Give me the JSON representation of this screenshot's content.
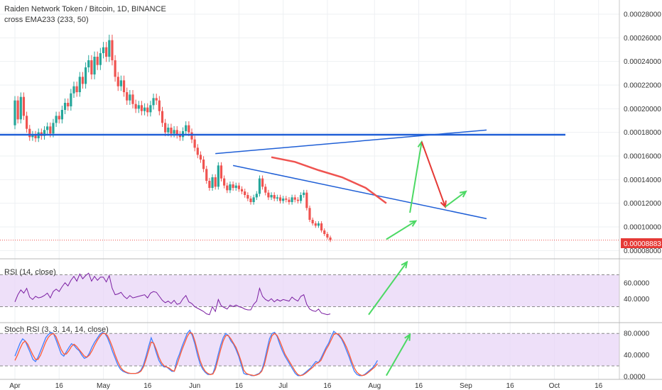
{
  "header": {
    "title": "Raiden Network Token / Bitcoin, 1D, BINANCE",
    "indicator": "cross EMA233 (233, 50)"
  },
  "panels": {
    "rsi_label": "RSI (14, close)",
    "stoch_label": "Stoch RSI (3, 3, 14, 14, close)"
  },
  "colors": {
    "up": "#26a69a",
    "down": "#ef5350",
    "resistance": "#1f5fd6",
    "arrow_up": "#4cd964",
    "arrow_down": "#e53935",
    "rsi_line": "#7b1fa2",
    "stoch_k": "#3f7fff",
    "stoch_d": "#ff5a36",
    "band": "#e8d5f7"
  },
  "chart_data": [
    {
      "type": "candlestick",
      "y_ticks": [
        "0.00028000",
        "0.00026000",
        "0.00024000",
        "0.00022000",
        "0.00020000",
        "0.00018000",
        "0.00016000",
        "0.00014000",
        "0.00012000",
        "0.00010000",
        "0.00008000"
      ],
      "ylim": [
        7.3e-05,
        0.000292
      ],
      "last_price": "0.00008883",
      "resistance_level": 0.000178,
      "x_ticks": [
        "Apr",
        "16",
        "May",
        "16",
        "Jun",
        "16",
        "Jul",
        "16",
        "Aug",
        "16",
        "Sep",
        "16",
        "Oct",
        "16"
      ],
      "x_tick_days": [
        0,
        15,
        30,
        45,
        61,
        76,
        91,
        106,
        122,
        137,
        153,
        168,
        183,
        198
      ],
      "trend_lines": [
        {
          "from": [
            68,
            0.000162
          ],
          "to": [
            160,
            0.000182
          ]
        },
        {
          "from": [
            74,
            0.000152
          ],
          "to": [
            160,
            0.000107
          ]
        }
      ],
      "ema_curve": [
        [
          87,
          0.000159
        ],
        [
          95,
          0.000155
        ],
        [
          103,
          0.000148
        ],
        [
          111,
          0.000142
        ],
        [
          119,
          0.000133
        ],
        [
          126,
          0.00012
        ]
      ],
      "arrows": [
        {
          "direction": "up",
          "from": [
            126,
            8.95e-05
          ],
          "to": [
            136,
            0.000105
          ]
        },
        {
          "direction": "up",
          "from": [
            134,
            0.000112
          ],
          "to": [
            138,
            0.000172
          ]
        },
        {
          "direction": "down",
          "from": [
            138,
            0.000172
          ],
          "to": [
            146,
            0.000117
          ]
        },
        {
          "direction": "up",
          "from": [
            146,
            0.000117
          ],
          "to": [
            153,
            0.00013
          ]
        }
      ],
      "candles": [
        [
          0.000186,
          0.000207
        ],
        [
          0.000207,
          0.000191
        ],
        [
          0.000191,
          0.00021
        ],
        [
          0.00021,
          0.000194
        ],
        [
          0.000194,
          0.000183
        ],
        [
          0.000183,
          0.000176
        ],
        [
          0.000176,
          0.000178
        ],
        [
          0.000178,
          0.000175
        ],
        [
          0.000175,
          0.00018
        ],
        [
          0.00018,
          0.000177
        ],
        [
          0.000177,
          0.000182
        ],
        [
          0.000182,
          0.000185
        ],
        [
          0.000185,
          0.000179
        ],
        [
          0.000179,
          0.000188
        ],
        [
          0.000188,
          0.000194
        ],
        [
          0.000194,
          0.000191
        ],
        [
          0.000191,
          0.000199
        ],
        [
          0.000199,
          0.000205
        ],
        [
          0.000205,
          0.000202
        ],
        [
          0.000202,
          0.000213
        ],
        [
          0.000213,
          0.000219
        ],
        [
          0.000219,
          0.000214
        ],
        [
          0.000214,
          0.000227
        ],
        [
          0.000227,
          0.000221
        ],
        [
          0.000221,
          0.000235
        ],
        [
          0.000235,
          0.000241
        ],
        [
          0.000241,
          0.000229
        ],
        [
          0.000229,
          0.000244
        ],
        [
          0.000244,
          0.000237
        ],
        [
          0.000237,
          0.000247
        ],
        [
          0.000247,
          0.000252
        ],
        [
          0.000252,
          0.000244
        ],
        [
          0.000244,
          0.000258
        ],
        [
          0.000258,
          0.000241
        ],
        [
          0.000241,
          0.000227
        ],
        [
          0.000227,
          0.000219
        ],
        [
          0.000219,
          0.000224
        ],
        [
          0.000224,
          0.000214
        ],
        [
          0.000214,
          0.000207
        ],
        [
          0.000207,
          0.000212
        ],
        [
          0.000212,
          0.000204
        ],
        [
          0.000204,
          0.0002
        ],
        [
          0.0002,
          0.000203
        ],
        [
          0.000203,
          0.000198
        ],
        [
          0.000198,
          0.000201
        ],
        [
          0.000201,
          0.000197
        ],
        [
          0.000197,
          0.000203
        ],
        [
          0.000203,
          0.000209
        ],
        [
          0.000209,
          0.000207
        ],
        [
          0.000207,
          0.000198
        ],
        [
          0.000198,
          0.000188
        ],
        [
          0.000188,
          0.00018
        ],
        [
          0.00018,
          0.000184
        ],
        [
          0.000184,
          0.000179
        ],
        [
          0.000179,
          0.000182
        ],
        [
          0.000182,
          0.000178
        ],
        [
          0.000178,
          0.000176
        ],
        [
          0.000176,
          0.000181
        ],
        [
          0.000181,
          0.000186
        ],
        [
          0.000186,
          0.00018
        ],
        [
          0.00018,
          0.000174
        ],
        [
          0.000174,
          0.000167
        ],
        [
          0.000167,
          0.000161
        ],
        [
          0.000161,
          0.000157
        ],
        [
          0.000157,
          0.000149
        ],
        [
          0.000149,
          0.000139
        ],
        [
          0.000139,
          0.000133
        ],
        [
          0.000133,
          0.000142
        ],
        [
          0.000142,
          0.000134
        ],
        [
          0.000134,
          0.000152
        ],
        [
          0.000152,
          0.000141
        ],
        [
          0.000141,
          0.000135
        ],
        [
          0.000135,
          0.000131
        ],
        [
          0.000131,
          0.000136
        ],
        [
          0.000136,
          0.000133
        ],
        [
          0.000133,
          0.000135
        ],
        [
          0.000135,
          0.000132
        ],
        [
          0.000132,
          0.00013
        ],
        [
          0.00013,
          0.000127
        ],
        [
          0.000127,
          0.000124
        ],
        [
          0.000124,
          0.000121
        ],
        [
          0.000121,
          0.000125
        ],
        [
          0.000125,
          0.000128
        ],
        [
          0.000128,
          0.000141
        ],
        [
          0.000141,
          0.000134
        ],
        [
          0.000134,
          0.000129
        ],
        [
          0.000129,
          0.000125
        ],
        [
          0.000125,
          0.000127
        ],
        [
          0.000127,
          0.000124
        ],
        [
          0.000124,
          0.000125
        ],
        [
          0.000125,
          0.000122
        ],
        [
          0.000122,
          0.000124
        ],
        [
          0.000124,
          0.000123
        ],
        [
          0.000123,
          0.000121
        ],
        [
          0.000121,
          0.000125
        ],
        [
          0.000125,
          0.000123
        ],
        [
          0.000123,
          0.000122
        ],
        [
          0.000122,
          0.000127
        ],
        [
          0.000127,
          0.000129
        ],
        [
          0.000129,
          0.000116
        ],
        [
          0.000116,
          0.000106
        ],
        [
          0.000106,
          0.000103
        ],
        [
          0.000103,
          0.000101
        ],
        [
          0.000101,
          0.000103
        ],
        [
          0.000103,
          9.7e-05
        ],
        [
          9.7e-05,
          9.4e-05
        ],
        [
          9.4e-05,
          9.1e-05
        ],
        [
          9.1e-05,
          8.88e-05
        ]
      ]
    },
    {
      "type": "line",
      "y_ticks": [
        "60.0000",
        "40.0000"
      ],
      "ylim": [
        10,
        90
      ],
      "bands": [
        70,
        30
      ],
      "values": [
        36,
        45,
        51,
        47,
        53,
        42,
        39,
        43,
        41,
        42,
        44,
        47,
        41,
        49,
        52,
        49,
        55,
        60,
        56,
        63,
        68,
        62,
        71,
        65,
        69,
        72,
        62,
        68,
        63,
        67,
        67,
        61,
        69,
        53,
        45,
        46,
        48,
        43,
        40,
        44,
        41,
        42,
        43,
        44,
        45,
        41,
        47,
        49,
        48,
        43,
        38,
        35,
        37,
        34,
        38,
        33,
        34,
        40,
        44,
        36,
        34,
        30,
        28,
        26,
        24,
        21,
        20,
        30,
        24,
        39,
        31,
        29,
        27,
        32,
        30,
        32,
        30,
        29,
        27,
        26,
        26,
        33,
        37,
        53,
        43,
        39,
        37,
        40,
        36,
        39,
        37,
        39,
        38,
        37,
        42,
        39,
        37,
        43,
        45,
        33,
        27,
        25,
        24,
        27,
        22,
        21,
        20,
        21
      ]
    },
    {
      "type": "line",
      "y_ticks": [
        "80.0000",
        "40.0000",
        "0.0000"
      ],
      "ylim": [
        -5,
        100
      ],
      "bands": [
        80,
        20
      ],
      "series": [
        {
          "values": [
            38,
            50,
            62,
            70,
            66,
            55,
            44,
            32,
            28,
            36,
            48,
            60,
            72,
            78,
            82,
            80,
            68,
            55,
            42,
            38,
            46,
            54,
            61,
            58,
            52,
            48,
            40,
            34,
            36,
            44,
            55,
            64,
            71,
            78,
            82,
            80,
            72,
            60,
            46,
            34,
            22,
            14,
            10,
            8,
            6,
            6,
            6,
            6,
            8,
            12,
            22,
            38,
            56,
            72,
            60,
            44,
            30,
            22,
            18,
            18,
            14,
            10,
            10,
            30,
            42,
            56,
            68,
            80,
            86,
            76,
            60,
            40,
            24,
            14,
            8,
            4,
            4,
            6,
            20,
            40,
            58,
            72,
            80,
            76,
            66,
            60,
            50,
            38,
            22,
            6,
            4,
            4,
            2,
            2,
            4,
            6,
            12,
            28,
            50,
            70,
            80,
            82,
            74,
            60,
            48,
            38,
            30,
            22,
            14,
            6,
            2,
            2,
            4,
            8,
            12,
            16,
            22,
            28,
            26,
            34,
            44,
            54,
            62,
            74,
            84,
            80,
            76,
            70,
            60,
            48,
            36,
            22,
            10,
            4,
            2,
            2,
            4,
            8,
            12,
            16,
            22,
            30
          ]
        },
        {
          "values": [
            30,
            40,
            52,
            62,
            66,
            60,
            50,
            40,
            32,
            32,
            40,
            52,
            64,
            73,
            78,
            80,
            74,
            62,
            50,
            42,
            42,
            48,
            56,
            60,
            56,
            50,
            44,
            38,
            36,
            40,
            48,
            58,
            67,
            74,
            80,
            80,
            76,
            66,
            54,
            40,
            28,
            18,
            12,
            9,
            7,
            6,
            6,
            6,
            7,
            10,
            18,
            32,
            48,
            64,
            62,
            50,
            36,
            26,
            20,
            18,
            16,
            12,
            10,
            22,
            36,
            50,
            62,
            74,
            82,
            80,
            66,
            48,
            30,
            18,
            10,
            6,
            4,
            5,
            14,
            32,
            50,
            66,
            76,
            76,
            70,
            62,
            54,
            42,
            28,
            12,
            6,
            4,
            3,
            2,
            3,
            5,
            10,
            22,
            42,
            62,
            76,
            80,
            76,
            66,
            54,
            42,
            34,
            26,
            18,
            10,
            4,
            2,
            3,
            6,
            10,
            14,
            18,
            24,
            26,
            30,
            40,
            50,
            58,
            68,
            78,
            80,
            78,
            72,
            64,
            54,
            42,
            28,
            16,
            8,
            4,
            2,
            3,
            6,
            10,
            14,
            18,
            24
          ]
        }
      ]
    }
  ]
}
